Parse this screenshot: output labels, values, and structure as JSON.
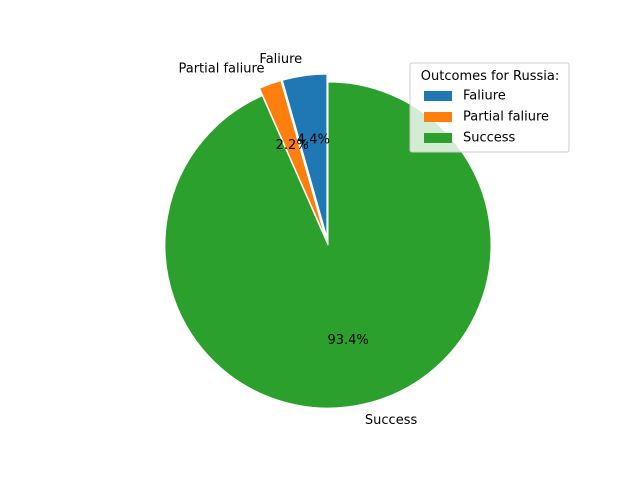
{
  "chart_data": {
    "type": "pie",
    "title": "",
    "slices": [
      {
        "label": "Faliure",
        "value": 4.4,
        "pct_label": "4.4%",
        "color": "#1f77b4",
        "exploded": true
      },
      {
        "label": "Partial faliure",
        "value": 2.2,
        "pct_label": "2.2%",
        "color": "#ff7f0e",
        "exploded": true
      },
      {
        "label": "Success",
        "value": 93.4,
        "pct_label": "93.4%",
        "color": "#2ca02c",
        "exploded": false
      }
    ],
    "start_angle_deg": 90,
    "direction": "counterclockwise",
    "legend": {
      "title": "Outcomes for Russia:",
      "placement": "top-right",
      "entries": [
        "Faliure",
        "Partial faliure",
        "Success"
      ]
    }
  }
}
